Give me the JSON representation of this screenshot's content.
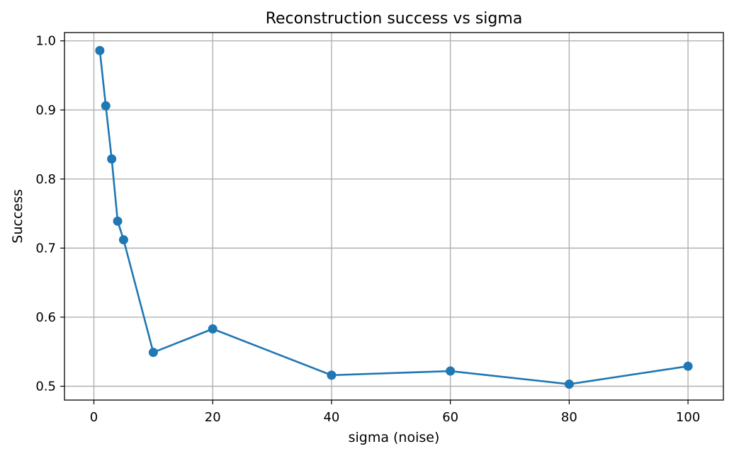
{
  "chart_data": {
    "type": "line",
    "title": "Reconstruction success vs sigma",
    "xlabel": "sigma (noise)",
    "ylabel": "Success",
    "xlim": [
      -4.95,
      105.95
    ],
    "ylim": [
      0.48,
      1.012
    ],
    "xticks": [
      0,
      20,
      40,
      60,
      80,
      100
    ],
    "xtick_labels": [
      "0",
      "20",
      "40",
      "60",
      "80",
      "100"
    ],
    "yticks": [
      0.5,
      0.6,
      0.7,
      0.8,
      0.9,
      1.0
    ],
    "ytick_labels": [
      "0.5",
      "0.6",
      "0.7",
      "0.8",
      "0.9",
      "1.0"
    ],
    "grid": true,
    "series": [
      {
        "color": "#1f77b4",
        "marker": "circle",
        "x": [
          1,
          2,
          3,
          4,
          5,
          10,
          20,
          40,
          60,
          80,
          100
        ],
        "y": [
          0.986,
          0.906,
          0.829,
          0.739,
          0.712,
          0.549,
          0.583,
          0.516,
          0.522,
          0.503,
          0.529
        ]
      }
    ]
  }
}
